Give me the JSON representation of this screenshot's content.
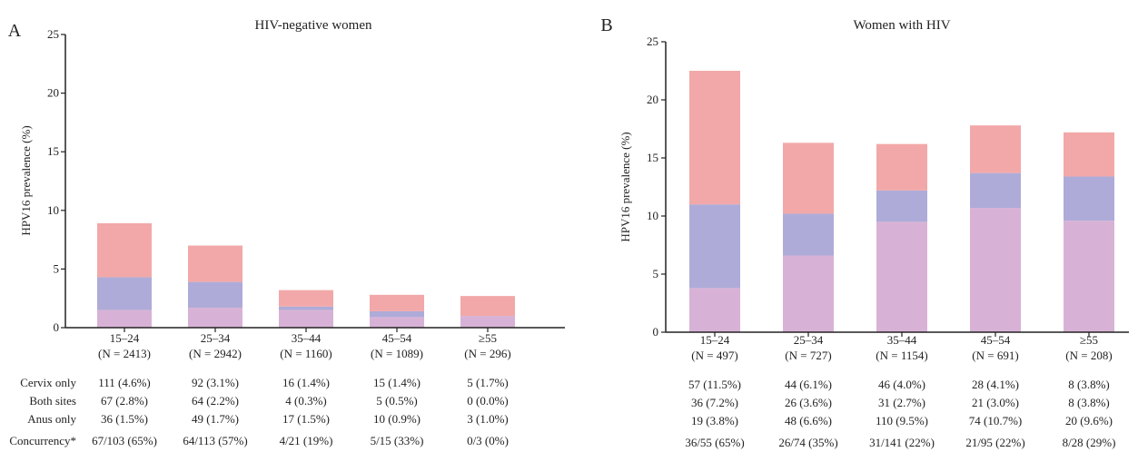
{
  "chart_data": [
    {
      "panel": "A",
      "type": "bar",
      "stacked": true,
      "title": "HIV-negative women",
      "ylabel": "HPV16 prevalence (%)",
      "ylim": [
        0,
        25
      ],
      "yticks": [
        "0",
        "5",
        "10",
        "15",
        "20",
        "25"
      ],
      "categories": [
        "15–24",
        "25–34",
        "35–44",
        "45–54",
        "≥55"
      ],
      "category_n": [
        "(N = 2413)",
        "(N = 2942)",
        "(N = 1160)",
        "(N = 1089)",
        "(N = 296)"
      ],
      "series": [
        {
          "key": "anus",
          "values": [
            1.5,
            1.7,
            1.5,
            0.9,
            1.0
          ],
          "color": "#d8b2d6"
        },
        {
          "key": "both",
          "values": [
            2.8,
            2.2,
            0.3,
            0.5,
            0.0
          ],
          "color": "#aeabd8"
        },
        {
          "key": "cervix",
          "values": [
            4.6,
            3.1,
            1.4,
            1.4,
            1.7
          ],
          "color": "#f2a8a8"
        }
      ],
      "table": {
        "row_labels": [
          "Cervix only",
          "Both sites",
          "Anus only",
          "Concurrency*"
        ],
        "rows": [
          [
            "111 (4.6%)",
            "92 (3.1%)",
            "16 (1.4%)",
            "15 (1.4%)",
            "5 (1.7%)"
          ],
          [
            "67 (2.8%)",
            "64 (2.2%)",
            "4 (0.3%)",
            "5 (0.5%)",
            "0 (0.0%)"
          ],
          [
            "36 (1.5%)",
            "49 (1.7%)",
            "17 (1.5%)",
            "10 (0.9%)",
            "3 (1.0%)"
          ],
          [
            "67/103 (65%)",
            "64/113 (57%)",
            "4/21 (19%)",
            "5/15 (33%)",
            "0/3 (0%)"
          ]
        ]
      }
    },
    {
      "panel": "B",
      "type": "bar",
      "stacked": true,
      "title": "Women with HIV",
      "ylabel": "HPV16 prevalence (%)",
      "ylim": [
        0,
        25
      ],
      "yticks": [
        "0",
        "5",
        "10",
        "15",
        "20",
        "25"
      ],
      "categories": [
        "15–24",
        "25–34",
        "35–44",
        "45–54",
        "≥55"
      ],
      "category_n": [
        "(N = 497)",
        "(N = 727)",
        "(N = 1154)",
        "(N = 691)",
        "(N = 208)"
      ],
      "series": [
        {
          "key": "anus",
          "values": [
            3.8,
            6.6,
            9.5,
            10.7,
            9.6
          ],
          "color": "#d8b2d6"
        },
        {
          "key": "both",
          "values": [
            7.2,
            3.6,
            2.7,
            3.0,
            3.8
          ],
          "color": "#aeabd8"
        },
        {
          "key": "cervix",
          "values": [
            11.5,
            6.1,
            4.0,
            4.1,
            3.8
          ],
          "color": "#f2a8a8"
        }
      ],
      "table": {
        "row_labels": [],
        "rows": [
          [
            "57 (11.5%)",
            "44 (6.1%)",
            "46 (4.0%)",
            "28 (4.1%)",
            "8 (3.8%)"
          ],
          [
            "36 (7.2%)",
            "26 (3.6%)",
            "31 (2.7%)",
            "21 (3.0%)",
            "8 (3.8%)"
          ],
          [
            "19 (3.8%)",
            "48 (6.6%)",
            "110 (9.5%)",
            "74 (10.7%)",
            "20 (9.6%)"
          ],
          [
            "36/55 (65%)",
            "26/74 (35%)",
            "31/141 (22%)",
            "21/95 (22%)",
            "8/28 (29%)"
          ]
        ]
      }
    }
  ]
}
